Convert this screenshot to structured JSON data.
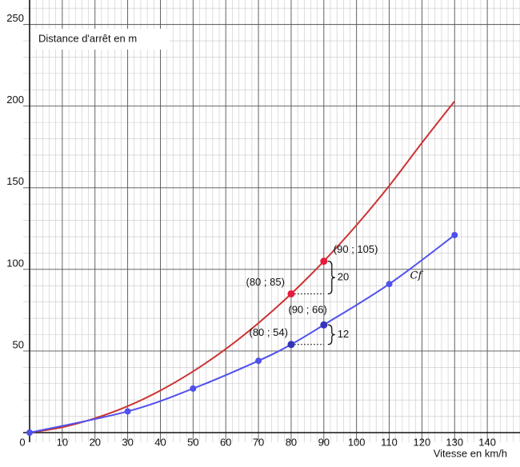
{
  "chart_data": {
    "type": "line",
    "y_label": "Distance d'arrêt en m",
    "x_label": "Vitesse en km/h",
    "xlim": [
      0,
      150
    ],
    "ylim": [
      0,
      265
    ],
    "xticks": [
      0,
      10,
      20,
      30,
      40,
      50,
      60,
      70,
      80,
      90,
      100,
      110,
      120,
      130,
      140
    ],
    "yticks": [
      50,
      100,
      150,
      200,
      250
    ],
    "grid": true,
    "series": [
      {
        "color": "#cc3333",
        "markers": false,
        "x": [
          0,
          10,
          20,
          30,
          40,
          50,
          60,
          70,
          80,
          90,
          100,
          110,
          120,
          130
        ],
        "values": [
          0,
          3.3,
          8.8,
          16.2,
          25.8,
          37.5,
          51.2,
          67.1,
          85,
          105,
          127.1,
          151.2,
          177.5,
          203
        ]
      },
      {
        "name": "Cf",
        "color": "#5050ee",
        "markers": true,
        "x": [
          0,
          30,
          50,
          70,
          80,
          90,
          110,
          130
        ],
        "values": [
          0,
          13,
          27,
          44,
          54,
          66,
          91,
          121
        ]
      }
    ],
    "annotations": [
      {
        "text": "(80 ; 85)",
        "x": 80,
        "y": 85,
        "color": "#e8193c"
      },
      {
        "text": "(90 ; 105)",
        "x": 90,
        "y": 105,
        "color": "#e8193c"
      },
      {
        "text": "(80 ; 54)",
        "x": 80,
        "y": 54,
        "color": "#3333bb"
      },
      {
        "text": "(90 ; 66)",
        "x": 90,
        "y": 66,
        "color": "#3333bb"
      }
    ],
    "differences": [
      {
        "text": "20",
        "x1": 80,
        "x2": 90,
        "y1": 85,
        "y2": 105
      },
      {
        "text": "12",
        "x1": 80,
        "x2": 90,
        "y1": 54,
        "y2": 66
      }
    ]
  }
}
